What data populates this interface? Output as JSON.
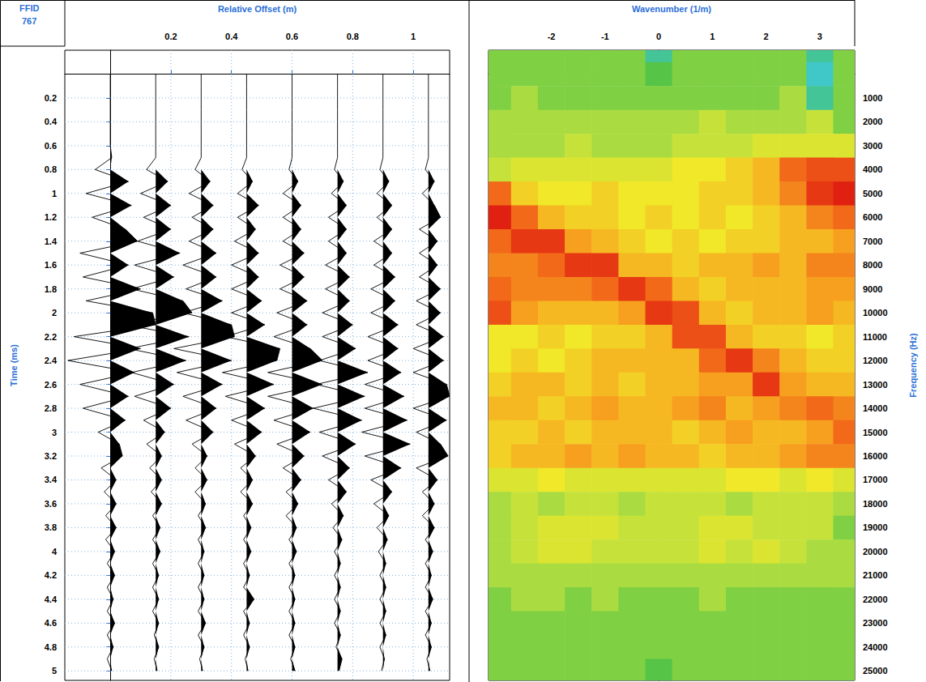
{
  "header": {
    "label": "FFID",
    "value": 767
  },
  "chart_data": [
    {
      "type": "wiggle",
      "xlabel": "Relative Offset (m)",
      "ylabel": "Time (ms)",
      "xlim": [
        -0.15,
        1.12
      ],
      "ylim": [
        -0.2,
        5.08
      ],
      "xticks": [
        0.2,
        0.4,
        0.6,
        0.8,
        1
      ],
      "yticks": [
        0.2,
        0.4,
        0.6,
        0.8,
        1,
        1.2,
        1.4,
        1.6,
        1.8,
        2,
        2.2,
        2.4,
        2.6,
        2.8,
        3,
        3.2,
        3.4,
        3.6,
        3.8,
        4,
        4.2,
        4.4,
        4.6,
        4.8,
        5
      ],
      "grid": true,
      "color": "#000000",
      "time": [
        0,
        0.1,
        0.2,
        0.3,
        0.4,
        0.5,
        0.6,
        0.7,
        0.8,
        0.9,
        1,
        1.1,
        1.2,
        1.3,
        1.4,
        1.5,
        1.6,
        1.7,
        1.8,
        1.9,
        2,
        2.1,
        2.2,
        2.3,
        2.4,
        2.5,
        2.6,
        2.7,
        2.8,
        2.9,
        3,
        3.1,
        3.2,
        3.3,
        3.4,
        3.5,
        3.6,
        3.7,
        3.8,
        3.9,
        4,
        4.1,
        4.2,
        4.3,
        4.4,
        4.5,
        4.6,
        4.7,
        4.8,
        4.9,
        5
      ],
      "traces": [
        {
          "offset": 0,
          "values": [
            0,
            0,
            0,
            0,
            0,
            0,
            0,
            0.005,
            -0.05,
            0.06,
            -0.08,
            0.07,
            -0.06,
            0.05,
            0.09,
            -0.1,
            0.06,
            -0.09,
            0.1,
            -0.08,
            0.14,
            0.15,
            -0.12,
            0.1,
            -0.14,
            0.08,
            -0.1,
            0.06,
            -0.09,
            0.05,
            -0.04,
            0.03,
            0.04,
            -0.03,
            0.02,
            -0.02,
            0.02,
            -0.015,
            0.02,
            -0.015,
            0.015,
            -0.01,
            0.015,
            -0.01,
            0.01,
            -0.01,
            0.015,
            -0.01,
            0.01,
            -0.01,
            0.005
          ]
        },
        {
          "offset": 0.15,
          "values": [
            0,
            0,
            0,
            0,
            0,
            0,
            0,
            0,
            -0.03,
            0.04,
            -0.05,
            0.05,
            -0.04,
            0.05,
            -0.06,
            0.08,
            -0.07,
            0.06,
            -0.08,
            0.09,
            0.12,
            -0.1,
            0.11,
            -0.09,
            0.1,
            -0.08,
            0.06,
            -0.07,
            0.05,
            -0.04,
            0.03,
            -0.03,
            0.02,
            -0.02,
            0.02,
            -0.015,
            0.02,
            -0.01,
            0.015,
            -0.01,
            0.015,
            -0.01,
            0.01,
            -0.01,
            0.01,
            -0.01,
            0.01,
            -0.005,
            0.01,
            -0.005,
            0.005
          ]
        },
        {
          "offset": 0.3,
          "values": [
            0,
            0,
            0,
            0,
            0,
            0,
            0,
            0,
            -0.02,
            0.03,
            -0.04,
            0.04,
            -0.03,
            0.04,
            -0.04,
            0.05,
            -0.06,
            0.05,
            -0.05,
            0.07,
            -0.06,
            0.1,
            0.11,
            -0.09,
            0.1,
            -0.08,
            0.07,
            -0.06,
            0.05,
            -0.05,
            0.04,
            -0.03,
            0.02,
            -0.02,
            0.02,
            -0.02,
            0.015,
            -0.01,
            0.015,
            -0.01,
            0.01,
            -0.01,
            0.01,
            -0.01,
            0.01,
            -0.01,
            0.015,
            -0.01,
            0.01,
            -0.005,
            0.005
          ]
        },
        {
          "offset": 0.45,
          "values": [
            0,
            0,
            0,
            0,
            0,
            0,
            0,
            0,
            -0.015,
            0.02,
            -0.03,
            0.04,
            -0.03,
            0.03,
            -0.04,
            0.04,
            -0.05,
            0.04,
            -0.05,
            0.05,
            -0.05,
            0.06,
            -0.07,
            0.11,
            0.1,
            -0.08,
            0.09,
            -0.07,
            0.06,
            -0.05,
            0.05,
            -0.04,
            0.03,
            -0.02,
            0.02,
            -0.02,
            0.02,
            -0.01,
            0.015,
            -0.01,
            0.015,
            -0.01,
            0.01,
            -0.01,
            0.025,
            -0.01,
            0.01,
            -0.01,
            0.01,
            -0.005,
            0.005
          ]
        },
        {
          "offset": 0.6,
          "values": [
            0,
            0,
            0,
            0,
            0,
            0,
            0,
            0,
            -0.01,
            0.02,
            -0.03,
            0.03,
            -0.03,
            0.03,
            -0.03,
            0.04,
            -0.04,
            0.04,
            -0.04,
            0.05,
            -0.05,
            0.05,
            -0.06,
            0.06,
            0.1,
            -0.08,
            0.1,
            -0.08,
            0.07,
            -0.06,
            0.06,
            -0.05,
            0.04,
            -0.03,
            0.03,
            -0.02,
            0.02,
            -0.02,
            0.015,
            -0.01,
            0.015,
            -0.01,
            0.01,
            -0.01,
            0.01,
            -0.01,
            0.01,
            -0.01,
            0.01,
            -0.005,
            0.01
          ]
        },
        {
          "offset": 0.75,
          "values": [
            0,
            0,
            0,
            0,
            0,
            0,
            0,
            0,
            -0.01,
            0.02,
            -0.02,
            0.03,
            -0.03,
            0.03,
            -0.03,
            0.03,
            -0.04,
            0.04,
            -0.04,
            0.04,
            -0.05,
            0.05,
            -0.05,
            0.06,
            -0.06,
            0.1,
            -0.07,
            0.09,
            -0.08,
            0.08,
            -0.06,
            0.06,
            -0.05,
            0.04,
            -0.03,
            0.03,
            -0.02,
            0.02,
            -0.015,
            0.015,
            -0.01,
            0.01,
            -0.01,
            0.01,
            -0.01,
            0.01,
            -0.01,
            0.01,
            -0.005,
            0.015,
            0.005
          ]
        },
        {
          "offset": 0.9,
          "values": [
            0,
            0,
            0,
            0,
            0,
            0,
            0,
            0,
            -0.01,
            0.02,
            -0.02,
            0.03,
            -0.02,
            0.03,
            -0.03,
            0.03,
            -0.03,
            0.04,
            -0.04,
            0.04,
            -0.04,
            0.05,
            -0.05,
            0.05,
            -0.05,
            0.06,
            -0.06,
            0.07,
            -0.06,
            0.08,
            -0.07,
            0.09,
            -0.06,
            0.06,
            -0.04,
            0.03,
            -0.03,
            0.02,
            -0.02,
            0.015,
            -0.015,
            0.01,
            -0.01,
            0.01,
            -0.01,
            0.01,
            -0.01,
            0.01,
            -0.01,
            0.005,
            -0.005
          ]
        },
        {
          "offset": 1.05,
          "values": [
            0,
            0,
            0,
            0,
            0,
            0,
            0,
            0,
            -0.01,
            0.02,
            -0.02,
            0.02,
            0.04,
            -0.03,
            0.03,
            -0.03,
            0.03,
            -0.03,
            0.04,
            -0.04,
            0.04,
            -0.04,
            0.05,
            -0.05,
            0.05,
            -0.05,
            0.06,
            0.07,
            -0.05,
            0.06,
            -0.04,
            0.04,
            0.065,
            -0.04,
            0.03,
            -0.02,
            0.02,
            -0.02,
            0.02,
            -0.01,
            0.015,
            -0.01,
            0.01,
            -0.01,
            0.015,
            -0.01,
            0.01,
            -0.01,
            0.01,
            -0.005,
            0.005
          ]
        }
      ]
    },
    {
      "type": "heatmap",
      "xlabel": "Wavenumber (1/m)",
      "ylabel": "Frequency (Hz)",
      "xlim": [
        -3.17,
        3.65
      ],
      "ylim": [
        -1000,
        25400
      ],
      "xticks": [
        -2,
        -1,
        0,
        1,
        2,
        3
      ],
      "yticks": [
        1000,
        2000,
        3000,
        4000,
        5000,
        6000,
        7000,
        8000,
        9000,
        10000,
        11000,
        12000,
        13000,
        14000,
        15000,
        16000,
        17000,
        18000,
        19000,
        20000,
        21000,
        22000,
        23000,
        24000,
        25000
      ],
      "x": [
        -3,
        -2.5,
        -2,
        -1.5,
        -1,
        -0.5,
        0,
        0.5,
        1,
        1.5,
        2,
        2.5,
        3,
        3.5
      ],
      "y": [
        -1000,
        0,
        1000,
        2000,
        3000,
        4000,
        5000,
        6000,
        7000,
        8000,
        9000,
        10000,
        11000,
        12000,
        13000,
        14000,
        15000,
        16000,
        17000,
        18000,
        19000,
        20000,
        21000,
        22000,
        23000,
        24000,
        25000
      ],
      "cells": [
        [
          0.3,
          0.3,
          0.3,
          0.3,
          0.3,
          0.3,
          0.15,
          0.3,
          0.3,
          0.3,
          0.3,
          0.3,
          0.15,
          0.3
        ],
        [
          0.3,
          0.3,
          0.3,
          0.3,
          0.3,
          0.3,
          0.25,
          0.3,
          0.3,
          0.3,
          0.3,
          0.3,
          0.1,
          0.3
        ],
        [
          0.3,
          0.35,
          0.3,
          0.3,
          0.3,
          0.3,
          0.3,
          0.3,
          0.3,
          0.3,
          0.3,
          0.35,
          0.15,
          0.3
        ],
        [
          0.35,
          0.35,
          0.35,
          0.35,
          0.35,
          0.35,
          0.35,
          0.35,
          0.4,
          0.35,
          0.35,
          0.35,
          0.4,
          0.3
        ],
        [
          0.35,
          0.35,
          0.35,
          0.4,
          0.35,
          0.35,
          0.35,
          0.4,
          0.4,
          0.4,
          0.45,
          0.45,
          0.45,
          0.45
        ],
        [
          0.4,
          0.45,
          0.45,
          0.45,
          0.45,
          0.45,
          0.45,
          0.5,
          0.5,
          0.55,
          0.6,
          0.75,
          0.8,
          0.8
        ],
        [
          0.75,
          0.55,
          0.5,
          0.5,
          0.55,
          0.5,
          0.5,
          0.5,
          0.55,
          0.55,
          0.6,
          0.7,
          0.85,
          0.9
        ],
        [
          0.9,
          0.75,
          0.6,
          0.55,
          0.55,
          0.5,
          0.55,
          0.5,
          0.55,
          0.5,
          0.55,
          0.6,
          0.7,
          0.75
        ],
        [
          0.75,
          0.85,
          0.85,
          0.65,
          0.6,
          0.55,
          0.5,
          0.55,
          0.5,
          0.55,
          0.55,
          0.6,
          0.6,
          0.65
        ],
        [
          0.7,
          0.7,
          0.75,
          0.85,
          0.85,
          0.6,
          0.6,
          0.55,
          0.6,
          0.6,
          0.65,
          0.6,
          0.7,
          0.7
        ],
        [
          0.75,
          0.7,
          0.7,
          0.7,
          0.75,
          0.85,
          0.75,
          0.6,
          0.55,
          0.6,
          0.6,
          0.6,
          0.65,
          0.65
        ],
        [
          0.8,
          0.65,
          0.6,
          0.6,
          0.6,
          0.65,
          0.85,
          0.8,
          0.6,
          0.55,
          0.6,
          0.6,
          0.65,
          0.6
        ],
        [
          0.5,
          0.5,
          0.55,
          0.5,
          0.55,
          0.55,
          0.6,
          0.8,
          0.8,
          0.6,
          0.55,
          0.55,
          0.5,
          0.55
        ],
        [
          0.5,
          0.55,
          0.5,
          0.55,
          0.6,
          0.6,
          0.6,
          0.6,
          0.75,
          0.85,
          0.7,
          0.6,
          0.55,
          0.55
        ],
        [
          0.55,
          0.6,
          0.6,
          0.55,
          0.6,
          0.55,
          0.6,
          0.6,
          0.65,
          0.65,
          0.85,
          0.65,
          0.6,
          0.6
        ],
        [
          0.6,
          0.6,
          0.55,
          0.6,
          0.65,
          0.6,
          0.6,
          0.65,
          0.7,
          0.6,
          0.65,
          0.7,
          0.75,
          0.7
        ],
        [
          0.55,
          0.55,
          0.6,
          0.55,
          0.6,
          0.6,
          0.6,
          0.55,
          0.6,
          0.65,
          0.6,
          0.6,
          0.65,
          0.75
        ],
        [
          0.55,
          0.6,
          0.6,
          0.65,
          0.6,
          0.65,
          0.6,
          0.6,
          0.55,
          0.6,
          0.6,
          0.65,
          0.7,
          0.7
        ],
        [
          0.45,
          0.45,
          0.5,
          0.45,
          0.45,
          0.45,
          0.45,
          0.45,
          0.45,
          0.5,
          0.5,
          0.45,
          0.5,
          0.45
        ],
        [
          0.35,
          0.4,
          0.35,
          0.4,
          0.4,
          0.35,
          0.4,
          0.4,
          0.4,
          0.35,
          0.4,
          0.4,
          0.4,
          0.35
        ],
        [
          0.35,
          0.4,
          0.45,
          0.45,
          0.45,
          0.4,
          0.4,
          0.4,
          0.45,
          0.45,
          0.4,
          0.4,
          0.4,
          0.3
        ],
        [
          0.35,
          0.4,
          0.45,
          0.45,
          0.4,
          0.4,
          0.4,
          0.4,
          0.45,
          0.4,
          0.45,
          0.4,
          0.35,
          0.35
        ],
        [
          0.35,
          0.35,
          0.35,
          0.35,
          0.35,
          0.35,
          0.35,
          0.35,
          0.35,
          0.35,
          0.35,
          0.35,
          0.35,
          0.35
        ],
        [
          0.3,
          0.35,
          0.35,
          0.3,
          0.35,
          0.3,
          0.3,
          0.3,
          0.35,
          0.3,
          0.3,
          0.3,
          0.3,
          0.3
        ],
        [
          0.3,
          0.3,
          0.3,
          0.3,
          0.3,
          0.3,
          0.3,
          0.3,
          0.3,
          0.3,
          0.3,
          0.3,
          0.3,
          0.3
        ],
        [
          0.3,
          0.3,
          0.3,
          0.3,
          0.3,
          0.3,
          0.3,
          0.3,
          0.3,
          0.3,
          0.3,
          0.3,
          0.3,
          0.3
        ],
        [
          0.3,
          0.3,
          0.3,
          0.3,
          0.3,
          0.3,
          0.25,
          0.3,
          0.3,
          0.3,
          0.3,
          0.3,
          0.3,
          0.3
        ]
      ]
    }
  ]
}
